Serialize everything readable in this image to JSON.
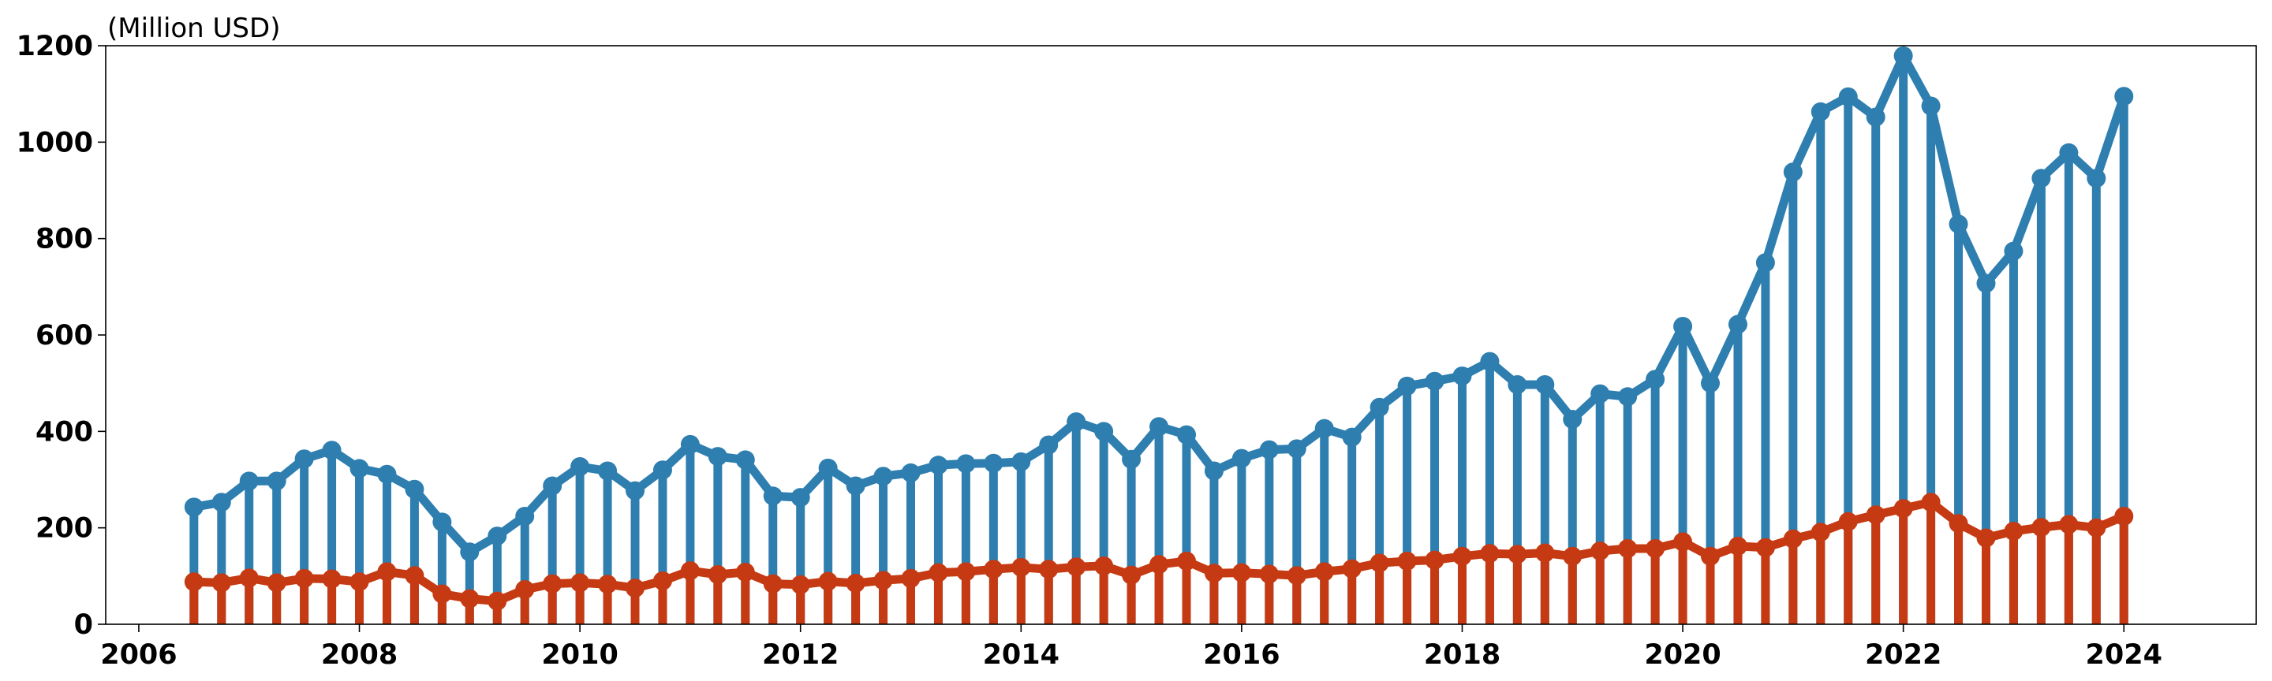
{
  "chart_data": {
    "type": "line",
    "unit_label": "(Million USD)",
    "xlim": [
      2005.7,
      2025.2
    ],
    "ylim": [
      0,
      1200
    ],
    "x_ticks": [
      2006,
      2008,
      2010,
      2012,
      2014,
      2016,
      2018,
      2020,
      2022,
      2024
    ],
    "y_ticks": [
      0,
      200,
      400,
      600,
      800,
      1000,
      1200
    ],
    "grid": false,
    "x": [
      2006.5,
      2006.75,
      2007.0,
      2007.25,
      2007.5,
      2007.75,
      2008.0,
      2008.25,
      2008.5,
      2008.75,
      2009.0,
      2009.25,
      2009.5,
      2009.75,
      2010.0,
      2010.25,
      2010.5,
      2010.75,
      2011.0,
      2011.25,
      2011.5,
      2011.75,
      2012.0,
      2012.25,
      2012.5,
      2012.75,
      2013.0,
      2013.25,
      2013.5,
      2013.75,
      2014.0,
      2014.25,
      2014.5,
      2014.75,
      2015.0,
      2015.25,
      2015.5,
      2015.75,
      2016.0,
      2016.25,
      2016.5,
      2016.75,
      2017.0,
      2017.25,
      2017.5,
      2017.75,
      2018.0,
      2018.25,
      2018.5,
      2018.75,
      2019.0,
      2019.25,
      2019.5,
      2019.75,
      2020.0,
      2020.25,
      2020.5,
      2020.75,
      2021.0,
      2021.25,
      2021.5,
      2021.75,
      2022.0,
      2022.25,
      2022.5,
      2022.75,
      2023.0,
      2023.25,
      2023.5,
      2023.75,
      2024.0
    ],
    "series": [
      {
        "color": "#2E7EB0",
        "values": [
          243,
          253,
          297,
          297,
          343,
          361,
          323,
          311,
          280,
          212,
          150,
          183,
          224,
          287,
          327,
          318,
          277,
          320,
          373,
          348,
          341,
          266,
          263,
          324,
          287,
          307,
          314,
          330,
          333,
          334,
          337,
          372,
          420,
          400,
          342,
          410,
          393,
          318,
          344,
          362,
          364,
          406,
          388,
          450,
          494,
          504,
          515,
          545,
          497,
          497,
          425,
          478,
          472,
          508,
          618,
          500,
          622,
          750,
          938,
          1063,
          1094,
          1052,
          1179,
          1075,
          830,
          707,
          774,
          925,
          978,
          925,
          1095
        ]
      },
      {
        "color": "#C53A12",
        "values": [
          88,
          86,
          96,
          86,
          95,
          94,
          88,
          109,
          101,
          63,
          53,
          48,
          72,
          84,
          86,
          83,
          75,
          90,
          111,
          103,
          108,
          84,
          82,
          89,
          85,
          91,
          95,
          107,
          109,
          114,
          118,
          114,
          119,
          121,
          102,
          124,
          131,
          106,
          107,
          104,
          101,
          109,
          115,
          127,
          131,
          133,
          141,
          147,
          145,
          148,
          141,
          152,
          157,
          157,
          171,
          141,
          162,
          159,
          177,
          191,
          213,
          227,
          240,
          253,
          209,
          179,
          193,
          201,
          207,
          200,
          224
        ]
      }
    ]
  }
}
